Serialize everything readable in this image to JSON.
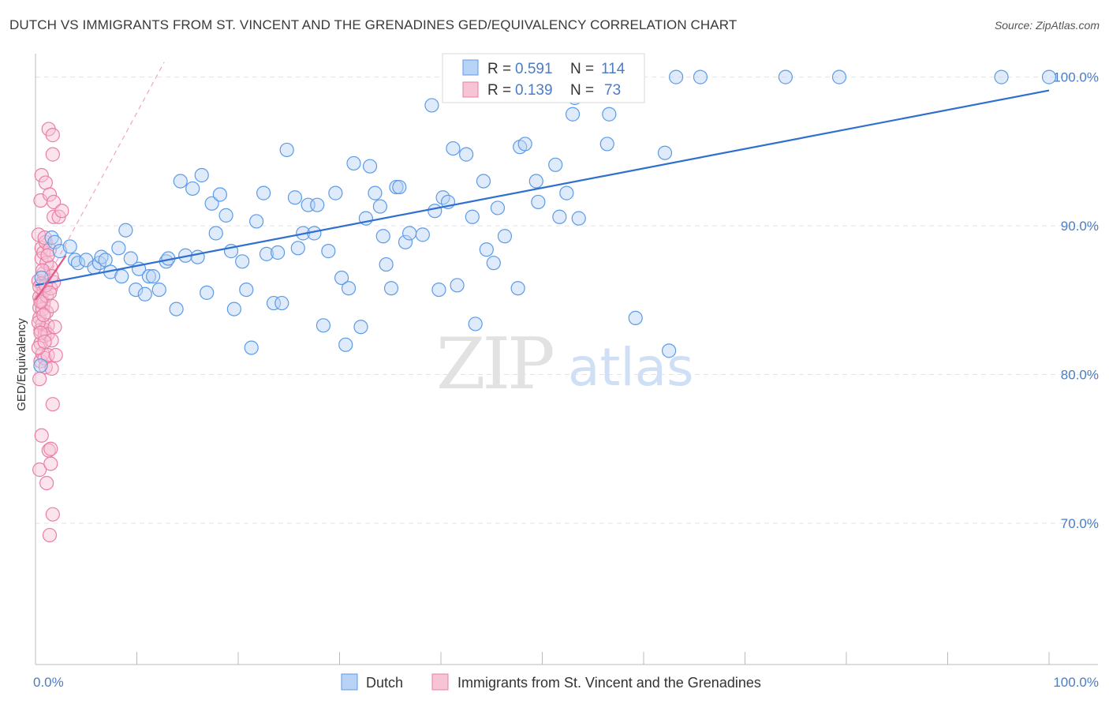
{
  "header": {
    "title": "DUTCH VS IMMIGRANTS FROM ST. VINCENT AND THE GRENADINES GED/EQUIVALENCY CORRELATION CHART",
    "source": "Source: ZipAtlas.com"
  },
  "watermark": {
    "zip": "ZIP",
    "atlas": "atlas"
  },
  "colors": {
    "blue": "#5b9be8",
    "blue_fill": "#b8d3f5",
    "blue_line": "#2f6fcf",
    "pink": "#ea7fa4",
    "pink_fill": "#f7c4d6",
    "pink_line": "#e05a88",
    "tick_text": "#4a7cc7"
  },
  "legend": {
    "r_label": "R =",
    "n_label": "N =",
    "rows": [
      {
        "series": "Dutch",
        "r": "0.591",
        "n": "114"
      },
      {
        "series": "Immigrants from St. Vincent and the Grenadines",
        "r": "0.139",
        "n": "73"
      }
    ]
  },
  "chart_data": {
    "type": "scatter",
    "title": "DUTCH VS IMMIGRANTS FROM ST. VINCENT AND THE GRENADINES GED/EQUIVALENCY CORRELATION CHART",
    "xlabel": "",
    "ylabel": "GED/Equivalency",
    "xlim": [
      0,
      100
    ],
    "ylim": [
      60.5,
      101.2
    ],
    "x_tick_labels": [
      "0.0%",
      "100.0%"
    ],
    "y_ticks": [
      100,
      90,
      80,
      70
    ],
    "y_tick_labels": [
      "100.0%",
      "90.0%",
      "80.0%",
      "70.0%"
    ],
    "series": [
      {
        "name": "Dutch",
        "r": 0.591,
        "n": 114,
        "trend": {
          "x": [
            0,
            100
          ],
          "y": [
            86.0,
            99.1
          ]
        },
        "points": [
          [
            0.5,
            80.6
          ],
          [
            0.6,
            86.5
          ],
          [
            1.6,
            89.2
          ],
          [
            1.9,
            88.9
          ],
          [
            2.4,
            88.3
          ],
          [
            3.4,
            88.6
          ],
          [
            3.9,
            87.7
          ],
          [
            4.2,
            87.5
          ],
          [
            5.0,
            87.7
          ],
          [
            5.8,
            87.2
          ],
          [
            6.3,
            87.5
          ],
          [
            6.5,
            87.9
          ],
          [
            6.9,
            87.7
          ],
          [
            7.4,
            86.9
          ],
          [
            8.2,
            88.5
          ],
          [
            8.5,
            86.6
          ],
          [
            8.9,
            89.7
          ],
          [
            9.4,
            87.8
          ],
          [
            9.9,
            85.7
          ],
          [
            10.2,
            87.1
          ],
          [
            10.8,
            85.4
          ],
          [
            11.2,
            86.6
          ],
          [
            11.6,
            86.6
          ],
          [
            12.2,
            85.7
          ],
          [
            12.9,
            87.6
          ],
          [
            13.1,
            87.8
          ],
          [
            13.9,
            84.4
          ],
          [
            14.3,
            93.0
          ],
          [
            14.8,
            88.0
          ],
          [
            15.5,
            92.5
          ],
          [
            16.0,
            87.9
          ],
          [
            16.4,
            93.4
          ],
          [
            16.9,
            85.5
          ],
          [
            17.4,
            91.5
          ],
          [
            17.8,
            89.5
          ],
          [
            18.2,
            92.1
          ],
          [
            18.8,
            90.7
          ],
          [
            19.3,
            88.3
          ],
          [
            19.6,
            84.4
          ],
          [
            20.4,
            87.6
          ],
          [
            20.8,
            85.7
          ],
          [
            21.3,
            81.8
          ],
          [
            21.8,
            90.3
          ],
          [
            22.5,
            92.2
          ],
          [
            22.8,
            88.1
          ],
          [
            23.5,
            84.8
          ],
          [
            24.3,
            84.8
          ],
          [
            23.9,
            88.2
          ],
          [
            24.8,
            95.1
          ],
          [
            25.6,
            91.9
          ],
          [
            25.9,
            88.5
          ],
          [
            26.4,
            89.5
          ],
          [
            26.9,
            91.4
          ],
          [
            27.5,
            89.5
          ],
          [
            27.8,
            91.4
          ],
          [
            28.4,
            83.3
          ],
          [
            28.9,
            88.3
          ],
          [
            29.6,
            92.2
          ],
          [
            30.2,
            86.5
          ],
          [
            30.6,
            82.0
          ],
          [
            30.9,
            85.8
          ],
          [
            31.4,
            94.2
          ],
          [
            32.1,
            83.2
          ],
          [
            32.6,
            90.5
          ],
          [
            33.0,
            94.0
          ],
          [
            33.5,
            92.2
          ],
          [
            34.0,
            91.3
          ],
          [
            34.3,
            89.3
          ],
          [
            34.6,
            87.4
          ],
          [
            35.1,
            85.8
          ],
          [
            35.6,
            92.6
          ],
          [
            35.9,
            92.6
          ],
          [
            36.5,
            88.9
          ],
          [
            36.9,
            89.5
          ],
          [
            38.2,
            89.4
          ],
          [
            39.1,
            98.1
          ],
          [
            39.4,
            91.0
          ],
          [
            39.8,
            85.7
          ],
          [
            40.2,
            91.9
          ],
          [
            40.7,
            91.6
          ],
          [
            41.2,
            95.2
          ],
          [
            41.6,
            86.0
          ],
          [
            42.5,
            94.8
          ],
          [
            43.1,
            90.6
          ],
          [
            43.4,
            83.4
          ],
          [
            44.2,
            93.0
          ],
          [
            44.5,
            88.4
          ],
          [
            45.2,
            87.5
          ],
          [
            45.6,
            91.2
          ],
          [
            46.3,
            89.3
          ],
          [
            47.6,
            85.8
          ],
          [
            47.8,
            95.3
          ],
          [
            48.3,
            95.5
          ],
          [
            49.4,
            93.0
          ],
          [
            49.6,
            91.6
          ],
          [
            51.3,
            94.1
          ],
          [
            51.7,
            90.6
          ],
          [
            52.4,
            92.2
          ],
          [
            53.6,
            90.5
          ],
          [
            56.4,
            95.5
          ],
          [
            56.6,
            97.5
          ],
          [
            59.2,
            83.8
          ],
          [
            62.1,
            94.9
          ],
          [
            62.5,
            81.6
          ],
          [
            53.0,
            97.5
          ],
          [
            53.2,
            98.6
          ],
          [
            63.2,
            100.0
          ],
          [
            65.6,
            100.0
          ],
          [
            74.0,
            100.0
          ],
          [
            79.3,
            100.0
          ],
          [
            95.3,
            100.0
          ],
          [
            100.0,
            100.0
          ]
        ]
      },
      {
        "name": "Immigrants from St. Vincent and the Grenadines",
        "r": 0.139,
        "n": 73,
        "trend": {
          "x": [
            0,
            3.0
          ],
          "y": [
            85.0,
            88.0
          ]
        },
        "trend_extension": {
          "x": [
            0,
            12.7
          ],
          "y": [
            85.0,
            101.0
          ]
        },
        "points": [
          [
            0.3,
            89.4
          ],
          [
            0.3,
            86.3
          ],
          [
            0.4,
            85.2
          ],
          [
            0.4,
            84.5
          ],
          [
            0.4,
            83.8
          ],
          [
            0.5,
            83.0
          ],
          [
            0.5,
            82.1
          ],
          [
            0.5,
            80.9
          ],
          [
            0.4,
            79.7
          ],
          [
            0.5,
            91.7
          ],
          [
            0.6,
            93.4
          ],
          [
            0.6,
            88.5
          ],
          [
            0.6,
            87.8
          ],
          [
            0.6,
            86.1
          ],
          [
            0.6,
            85.0
          ],
          [
            0.7,
            84.4
          ],
          [
            0.7,
            83.4
          ],
          [
            0.7,
            81.4
          ],
          [
            0.8,
            88.2
          ],
          [
            0.8,
            86.8
          ],
          [
            0.8,
            85.6
          ],
          [
            0.8,
            84.8
          ],
          [
            0.9,
            83.0
          ],
          [
            0.9,
            82.6
          ],
          [
            0.9,
            81.1
          ],
          [
            1.0,
            80.5
          ],
          [
            1.0,
            92.9
          ],
          [
            1.0,
            88.9
          ],
          [
            1.1,
            87.5
          ],
          [
            1.1,
            85.3
          ],
          [
            1.1,
            84.2
          ],
          [
            1.2,
            83.3
          ],
          [
            1.2,
            82.7
          ],
          [
            1.2,
            81.3
          ],
          [
            1.3,
            96.5
          ],
          [
            1.4,
            92.1
          ],
          [
            1.4,
            88.4
          ],
          [
            1.5,
            87.2
          ],
          [
            1.5,
            85.8
          ],
          [
            1.6,
            84.6
          ],
          [
            1.6,
            82.3
          ],
          [
            1.6,
            80.4
          ],
          [
            1.7,
            96.1
          ],
          [
            1.7,
            94.8
          ],
          [
            1.8,
            91.6
          ],
          [
            1.8,
            90.6
          ],
          [
            1.8,
            86.2
          ],
          [
            1.9,
            83.2
          ],
          [
            2.0,
            81.3
          ],
          [
            1.7,
            78.0
          ],
          [
            0.6,
            75.9
          ],
          [
            0.4,
            73.6
          ],
          [
            1.1,
            72.7
          ],
          [
            1.3,
            74.9
          ],
          [
            1.5,
            74.0
          ],
          [
            1.5,
            75.0
          ],
          [
            1.7,
            70.6
          ],
          [
            1.4,
            69.2
          ],
          [
            2.3,
            90.6
          ],
          [
            2.6,
            91.0
          ],
          [
            0.4,
            85.9
          ],
          [
            0.3,
            83.5
          ],
          [
            0.9,
            89.2
          ],
          [
            1.0,
            86.0
          ],
          [
            0.5,
            84.9
          ],
          [
            0.7,
            87.0
          ],
          [
            1.2,
            88.0
          ],
          [
            0.5,
            82.8
          ],
          [
            0.8,
            84.0
          ],
          [
            1.4,
            85.5
          ],
          [
            0.3,
            81.8
          ],
          [
            0.9,
            82.2
          ],
          [
            1.6,
            86.6
          ]
        ]
      }
    ]
  }
}
